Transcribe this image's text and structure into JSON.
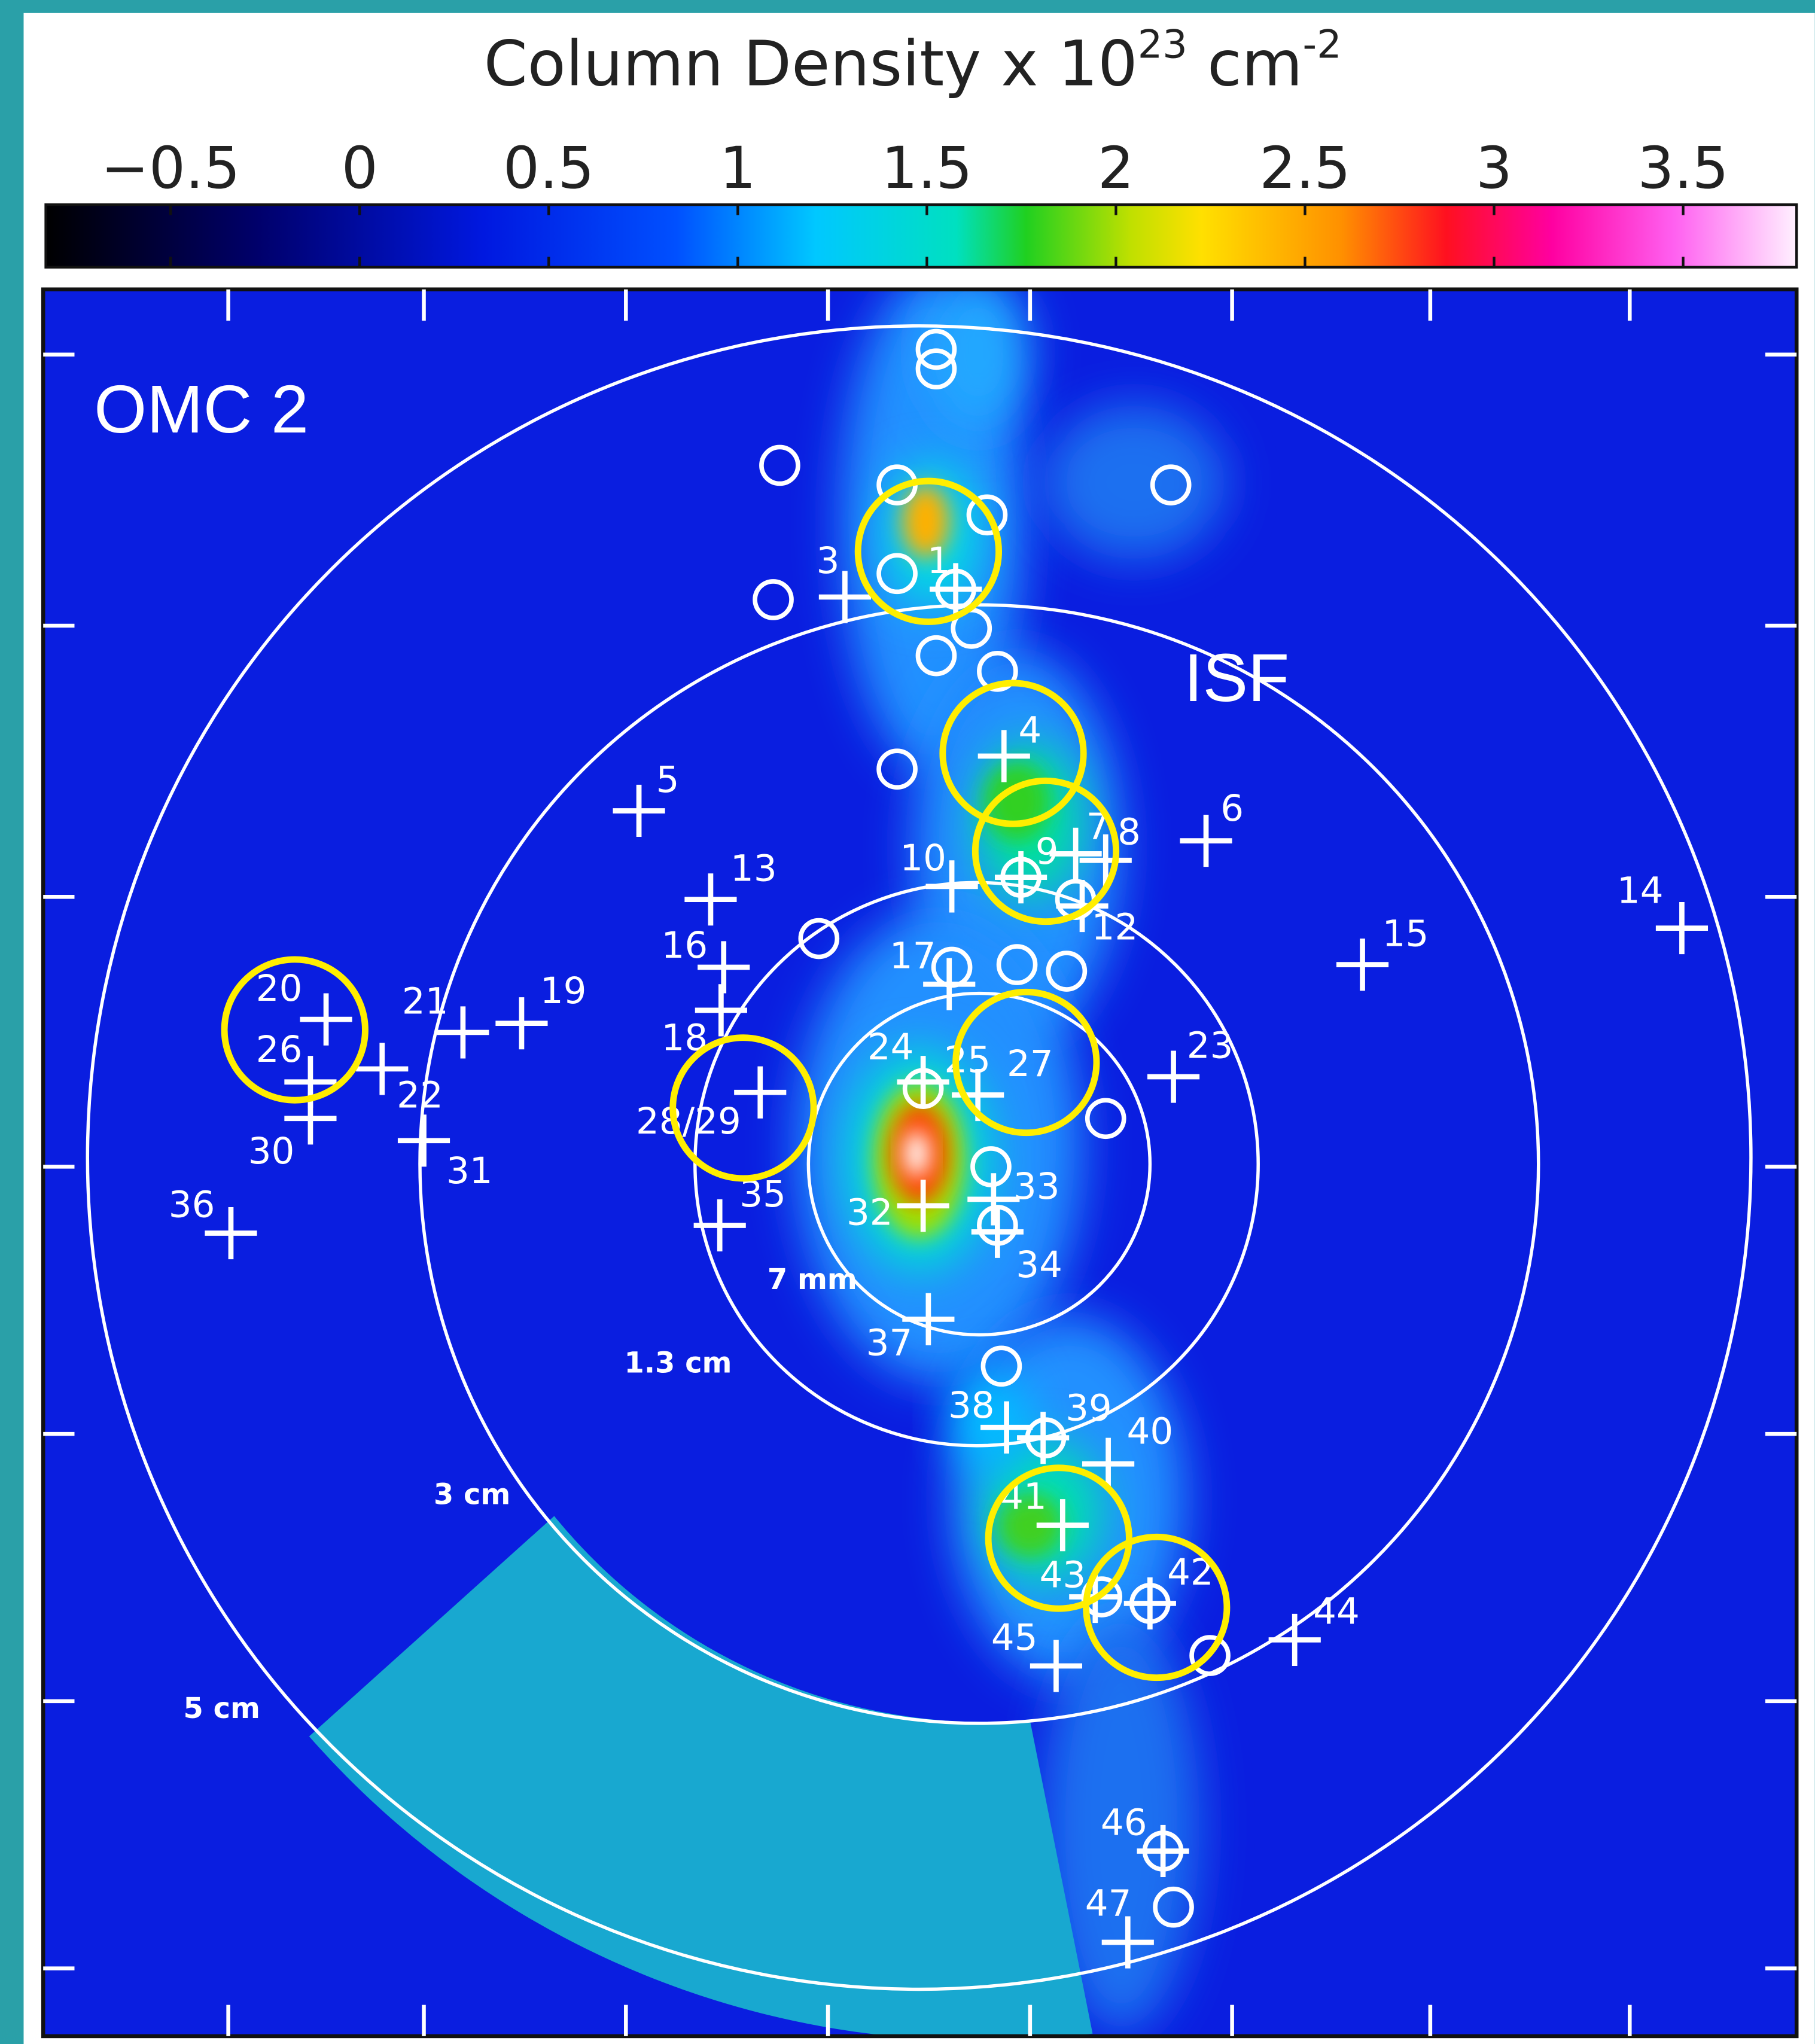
{
  "colorbar": {
    "title": {
      "text": "Column Density x 10",
      "exponent": "23",
      "unit": " cm",
      "unit_exponent": "-2"
    },
    "lim": [
      -0.83,
      3.8
    ],
    "ticks": [
      {
        "value": -0.5,
        "label": "−0.5"
      },
      0,
      0.5,
      1,
      1.5,
      2,
      2.5,
      3,
      3.5
    ]
  },
  "map": {
    "field_label": "OMC 2",
    "filament_label": "ISF",
    "rings": [
      "7 mm",
      "1.3 cm",
      "3 cm",
      "5 cm"
    ],
    "sources": [
      "1",
      "3",
      "4",
      "5",
      "6",
      "7",
      "8",
      "9",
      "10",
      "12",
      "13",
      "14",
      "15",
      "16",
      "17",
      "18",
      "19",
      "20",
      "21",
      "22",
      "23",
      "24",
      "25",
      "26",
      "27",
      "28/29",
      "30",
      "31",
      "32",
      "33",
      "34",
      "35",
      "36",
      "37",
      "38",
      "39",
      "40",
      "41",
      "43",
      "42",
      "44",
      "45",
      "46",
      "47"
    ]
  }
}
